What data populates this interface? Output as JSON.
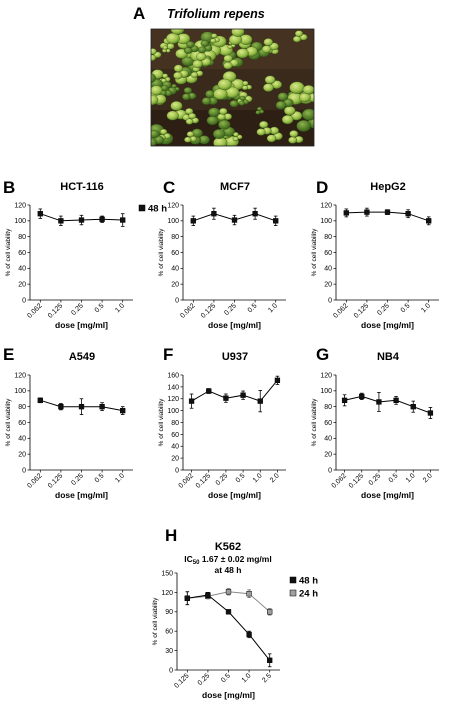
{
  "figure": {
    "panel_a": {
      "letter": "A",
      "title": "Trifolium repens"
    }
  },
  "colors": {
    "series_48h": "#111111",
    "series_24h": "#a0a0a0",
    "axis": "#000000"
  },
  "chart_data": [
    {
      "id": "B",
      "letter": "B",
      "type": "line",
      "title": "HCT-116",
      "xlabel": "dose [mg/ml]",
      "ylabel": "% of cell viability",
      "categories": [
        "0.062",
        "0.125",
        "0.25",
        "0.5",
        "1.0"
      ],
      "ylim": [
        0,
        120
      ],
      "yticks": [
        0,
        20,
        40,
        60,
        80,
        100,
        120
      ],
      "series": [
        {
          "name": "48 h",
          "values": [
            109,
            100,
            101,
            102,
            101
          ],
          "errors": [
            6,
            6,
            6,
            4,
            8
          ]
        }
      ],
      "legend": [
        "48 h"
      ]
    },
    {
      "id": "C",
      "letter": "C",
      "type": "line",
      "title": "MCF7",
      "xlabel": "dose [mg/ml]",
      "ylabel": "% of cell viability",
      "categories": [
        "0.062",
        "0.125",
        "0.25",
        "0.5",
        "1.0"
      ],
      "ylim": [
        0,
        120
      ],
      "yticks": [
        0,
        20,
        40,
        60,
        80,
        100,
        120
      ],
      "series": [
        {
          "values": [
            100,
            109,
            101,
            109,
            100
          ],
          "errors": [
            6,
            7,
            6,
            7,
            6
          ]
        }
      ]
    },
    {
      "id": "D",
      "letter": "D",
      "type": "line",
      "title": "HepG2",
      "xlabel": "dose [mg/ml]",
      "ylabel": "% of cell viability",
      "categories": [
        "0.062",
        "0.125",
        "0.25",
        "0.5",
        "1.0"
      ],
      "ylim": [
        0,
        120
      ],
      "yticks": [
        0,
        20,
        40,
        60,
        80,
        100,
        120
      ],
      "series": [
        {
          "values": [
            110,
            111,
            111,
            109,
            100
          ],
          "errors": [
            5,
            5,
            3,
            5,
            5
          ]
        }
      ]
    },
    {
      "id": "E",
      "letter": "E",
      "type": "line",
      "title": "A549",
      "xlabel": "dose [mg/ml]",
      "ylabel": "% of cell viability",
      "categories": [
        "0.062",
        "0.125",
        "0.25",
        "0.5",
        "1.0"
      ],
      "ylim": [
        0,
        120
      ],
      "yticks": [
        0,
        20,
        40,
        60,
        80,
        100,
        120
      ],
      "series": [
        {
          "values": [
            88,
            80,
            80,
            80,
            75
          ],
          "errors": [
            3,
            4,
            10,
            5,
            5
          ]
        }
      ]
    },
    {
      "id": "F",
      "letter": "F",
      "type": "line",
      "title": "U937",
      "xlabel": "dose [mg/ml]",
      "ylabel": "% of cell viability",
      "categories": [
        "0.062",
        "0.125",
        "0.25",
        "0.5",
        "1.0",
        "2.0"
      ],
      "ylim": [
        0,
        160
      ],
      "yticks": [
        0,
        20,
        40,
        60,
        80,
        100,
        120,
        140,
        160
      ],
      "series": [
        {
          "values": [
            116,
            133,
            121,
            126,
            116,
            151
          ],
          "errors": [
            12,
            4,
            7,
            7,
            18,
            7
          ]
        }
      ]
    },
    {
      "id": "G",
      "letter": "G",
      "type": "line",
      "title": "NB4",
      "xlabel": "dose [mg/ml]",
      "ylabel": "% of cell viability",
      "categories": [
        "0.062",
        "0.125",
        "0.25",
        "0.5",
        "1.0",
        "2.0"
      ],
      "ylim": [
        0,
        120
      ],
      "yticks": [
        0,
        20,
        40,
        60,
        80,
        100,
        120
      ],
      "series": [
        {
          "values": [
            88,
            93,
            86,
            88,
            80,
            72
          ],
          "errors": [
            7,
            4,
            12,
            5,
            7,
            7
          ]
        }
      ]
    },
    {
      "id": "H",
      "letter": "H",
      "type": "line",
      "title": "K562",
      "subtitle_prefix": "IC",
      "subtitle_sub": "50",
      "subtitle_rest": " 1.67 ± 0.02 mg/ml",
      "subtitle2": "at 48 h",
      "xlabel": "dose [mg/ml]",
      "ylabel": "% of cell viability",
      "categories": [
        "0.125",
        "0.25",
        "0.5",
        "1.0",
        "2.5"
      ],
      "ylim": [
        0,
        150
      ],
      "yticks": [
        0,
        30,
        60,
        90,
        120,
        150
      ],
      "series": [
        {
          "name": "48 h",
          "values": [
            111,
            116,
            90,
            55,
            15
          ],
          "errors": [
            10,
            4,
            3,
            5,
            10
          ]
        },
        {
          "name": "24 h",
          "values": [
            111,
            114,
            121,
            118,
            90
          ],
          "errors": [
            10,
            4,
            5,
            6,
            5
          ]
        }
      ],
      "legend": [
        "48 h",
        "24 h"
      ]
    }
  ]
}
